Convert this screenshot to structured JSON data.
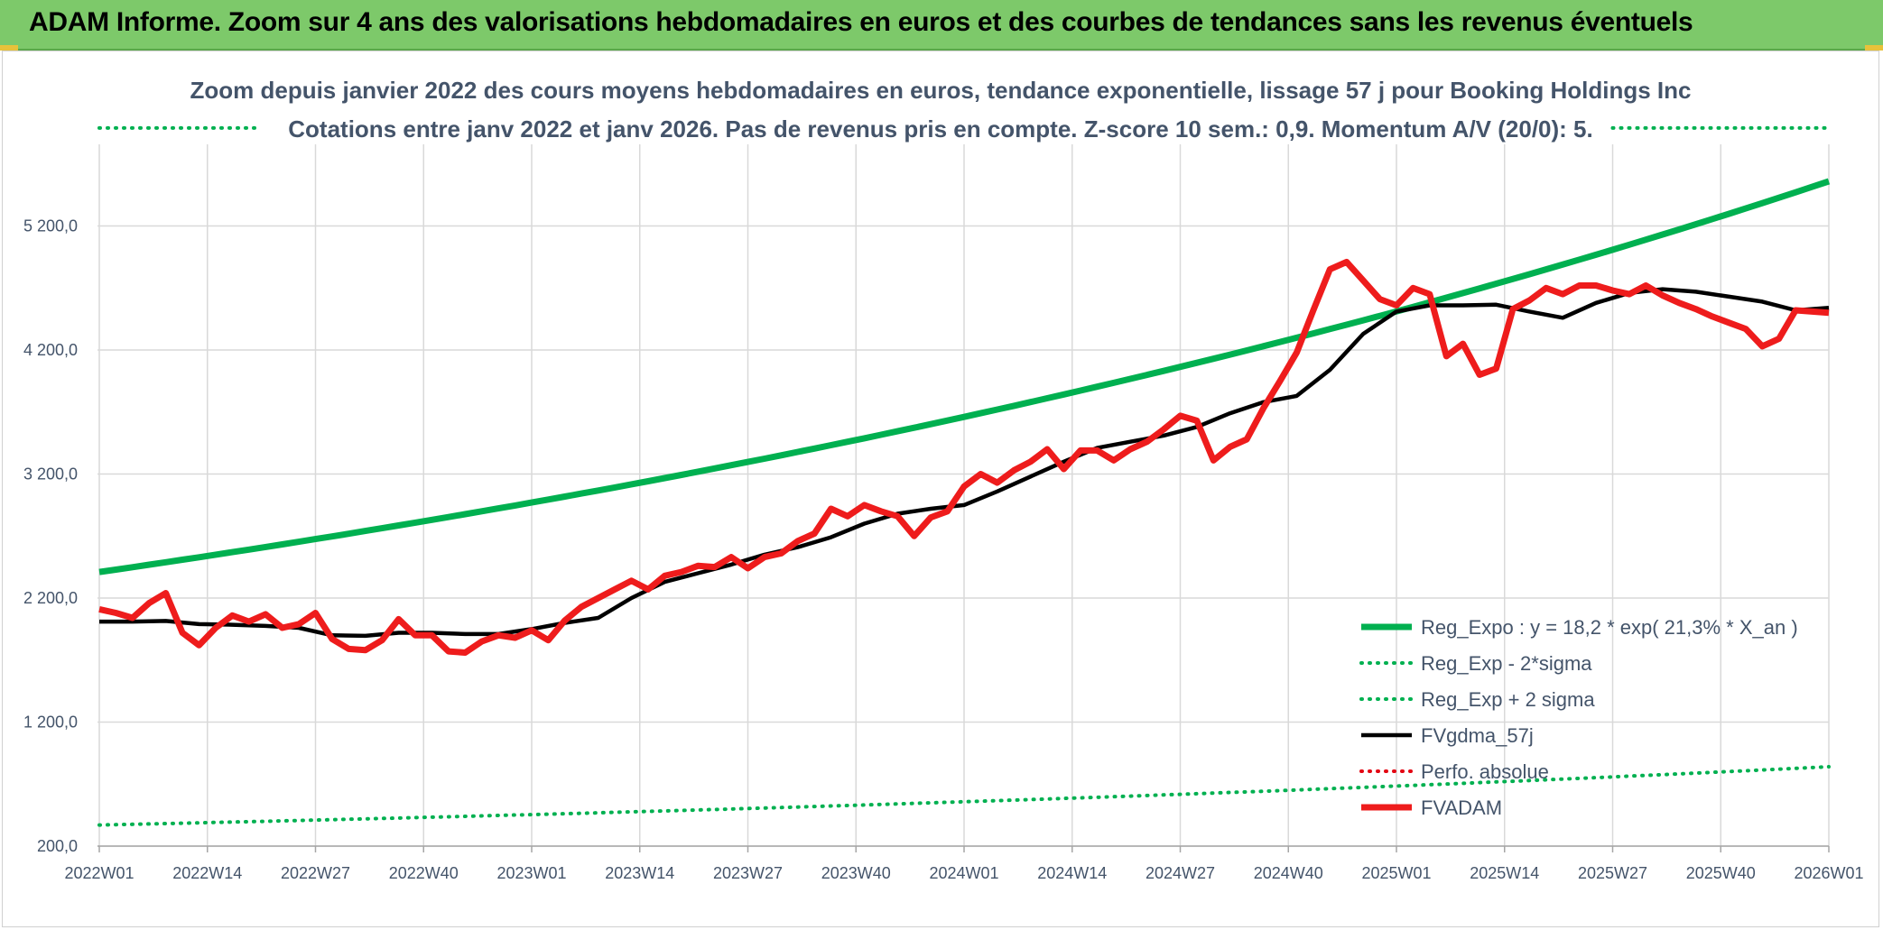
{
  "banner": {
    "title": "ADAM Informe. Zoom sur 4 ans des valorisations hebdomadaires en euros et des courbes de tendances sans les revenus éventuels",
    "color": "#7dc96a"
  },
  "chart_data": {
    "type": "line",
    "title": "Zoom depuis janvier 2022 des cours moyens hebdomadaires en euros, tendance exponentielle, lissage 57 j pour Booking Holdings Inc",
    "subtitle": "Cotations entre janv 2022 et janv 2026. Pas de revenus pris en compte. Z-score 10 sem.: 0,9. Momentum A/V (20/0): 5.",
    "xlabel": "",
    "ylabel": "",
    "x_ticks": [
      "2022W01",
      "2022W14",
      "2022W27",
      "2022W40",
      "2023W01",
      "2023W14",
      "2023W27",
      "2023W40",
      "2024W01",
      "2024W14",
      "2024W27",
      "2024W40",
      "2025W01",
      "2025W14",
      "2025W27",
      "2025W40",
      "2026W01"
    ],
    "y_ticks": [
      "200,0",
      "1 200,0",
      "2 200,0",
      "3 200,0",
      "4 200,0",
      "5 200,0"
    ],
    "ylim": [
      200,
      5800
    ],
    "grid": true,
    "legend_position": "bottom-right",
    "series": [
      {
        "name": "Reg_Expo : y = 18,2 * exp( 21,3% *  X_an )",
        "color": "#00b050",
        "style": "solid-thick",
        "x": [
          0,
          208
        ],
        "y": [
          2410,
          5560
        ],
        "interp": "exp"
      },
      {
        "name": "Reg_Exp - 2*sigma",
        "color": "#00b050",
        "style": "dotted",
        "x": [
          0,
          208
        ],
        "y": [
          370,
          840
        ],
        "interp": "exp"
      },
      {
        "name": "Reg_Exp + 2 sigma",
        "color": "#00b050",
        "style": "dotted",
        "x": [
          0,
          19,
          182,
          208
        ],
        "y": [
          5990,
          5990,
          5990,
          5990
        ],
        "interp": "linear",
        "segments": [
          [
            0,
            19
          ],
          [
            182,
            208
          ]
        ]
      },
      {
        "name": "FVgdma_57j",
        "color": "#000000",
        "style": "solid",
        "x": [
          0,
          4,
          8,
          12,
          16,
          20,
          24,
          28,
          32,
          36,
          40,
          44,
          48,
          52,
          56,
          60,
          64,
          68,
          72,
          76,
          80,
          84,
          88,
          92,
          96,
          100,
          104,
          108,
          112,
          116,
          120,
          124,
          128,
          132,
          136,
          140,
          144,
          148,
          152,
          156,
          160,
          164,
          168,
          172,
          176,
          180,
          184,
          188,
          192,
          196,
          200,
          204,
          208
        ],
        "y": [
          2010,
          2010,
          2015,
          1990,
          1985,
          1975,
          1960,
          1900,
          1895,
          1920,
          1920,
          1910,
          1910,
          1950,
          2000,
          2040,
          2200,
          2330,
          2400,
          2470,
          2550,
          2610,
          2690,
          2800,
          2880,
          2920,
          2950,
          3060,
          3180,
          3300,
          3410,
          3460,
          3510,
          3580,
          3690,
          3780,
          3830,
          4040,
          4330,
          4510,
          4560,
          4560,
          4565,
          4510,
          4460,
          4580,
          4660,
          4690,
          4670,
          4630,
          4590,
          4520,
          4540
        ]
      },
      {
        "name": "Perfo. absolue",
        "color": "#e30613",
        "style": "dotted",
        "x": [],
        "y": []
      },
      {
        "name": "FVADAM",
        "color": "#ee1c1c",
        "style": "solid-thick",
        "x": [
          0,
          2,
          4,
          6,
          8,
          10,
          12,
          14,
          16,
          18,
          20,
          22,
          24,
          26,
          28,
          30,
          32,
          34,
          36,
          38,
          40,
          42,
          44,
          46,
          48,
          50,
          52,
          54,
          56,
          58,
          60,
          62,
          64,
          66,
          68,
          70,
          72,
          74,
          76,
          78,
          80,
          82,
          84,
          86,
          88,
          90,
          92,
          94,
          96,
          98,
          100,
          102,
          104,
          106,
          108,
          110,
          112,
          114,
          116,
          118,
          120,
          122,
          124,
          126,
          128,
          130,
          132,
          134,
          136,
          138,
          140,
          142,
          144,
          146,
          148,
          150,
          152,
          154,
          156,
          158,
          160,
          162,
          164,
          166,
          168,
          170,
          172,
          174,
          176,
          178,
          180,
          182,
          184,
          186,
          188,
          190,
          192,
          194,
          196,
          198,
          200,
          202,
          204,
          206,
          208
        ],
        "y": [
          2110,
          2080,
          2040,
          2160,
          2240,
          1920,
          1820,
          1960,
          2060,
          2010,
          2070,
          1960,
          1990,
          2080,
          1870,
          1790,
          1780,
          1860,
          2030,
          1900,
          1900,
          1770,
          1760,
          1850,
          1900,
          1880,
          1940,
          1860,
          2020,
          2130,
          2200,
          2270,
          2340,
          2270,
          2380,
          2410,
          2460,
          2450,
          2530,
          2440,
          2530,
          2560,
          2660,
          2720,
          2920,
          2860,
          2950,
          2900,
          2860,
          2700,
          2850,
          2900,
          3100,
          3200,
          3130,
          3230,
          3300,
          3400,
          3240,
          3390,
          3390,
          3310,
          3400,
          3460,
          3560,
          3670,
          3630,
          3310,
          3420,
          3480,
          3730,
          3950,
          4180,
          4520,
          4850,
          4910,
          4760,
          4610,
          4560,
          4700,
          4650,
          4150,
          4250,
          4000,
          4050,
          4530,
          4600,
          4700,
          4650,
          4720,
          4720,
          4680,
          4650,
          4720,
          4640,
          4580,
          4530,
          4470,
          4420,
          4370,
          4230,
          4290,
          4520,
          4510,
          4500
        ]
      }
    ]
  }
}
